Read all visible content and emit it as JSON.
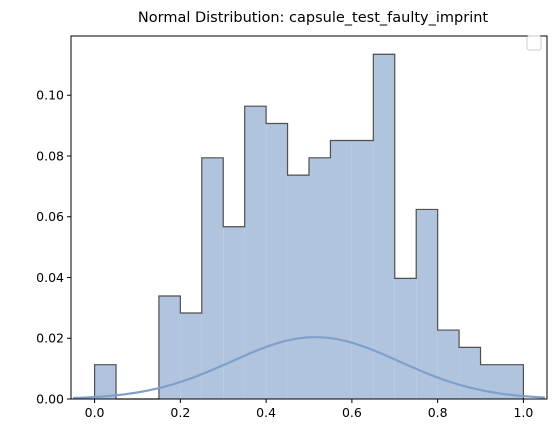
{
  "chart_data": {
    "type": "bar",
    "title": "Normal Distribution: capsule_test_faulty_imprint",
    "xlabel": "",
    "ylabel": "",
    "xlim": [
      -0.055,
      1.055
    ],
    "ylim": [
      0,
      0.1195
    ],
    "xticks": [
      0.0,
      0.2,
      0.4,
      0.6,
      0.8,
      1.0
    ],
    "xtick_labels": [
      "0.0",
      "0.2",
      "0.4",
      "0.6",
      "0.8",
      "1.0"
    ],
    "yticks": [
      0.0,
      0.02,
      0.04,
      0.06,
      0.08,
      0.1
    ],
    "ytick_labels": [
      "0.00",
      "0.02",
      "0.04",
      "0.06",
      "0.08",
      "0.10"
    ],
    "legend": "upper right, empty",
    "grid": false,
    "histogram": {
      "bin_edges": [
        0.0,
        0.05,
        0.1,
        0.15,
        0.2,
        0.25,
        0.3,
        0.35,
        0.4,
        0.45,
        0.5,
        0.55,
        0.6,
        0.65,
        0.7,
        0.75,
        0.8,
        0.85,
        0.9,
        0.95,
        1.0
      ],
      "values": [
        0.0113,
        0.0,
        0.0,
        0.0339,
        0.0283,
        0.0794,
        0.0567,
        0.0964,
        0.0907,
        0.0737,
        0.0794,
        0.0851,
        0.0851,
        0.1135,
        0.0397,
        0.0624,
        0.0227,
        0.017,
        0.0113,
        0.0113
      ],
      "fill": "#b0c4de",
      "edge": "#4f4f4f"
    },
    "curve": {
      "type": "normal-pdf",
      "mean": 0.515,
      "std": 0.196,
      "scale": 0.01,
      "x_range": [
        -0.05,
        1.05
      ],
      "color": "#7fa0cc"
    }
  }
}
